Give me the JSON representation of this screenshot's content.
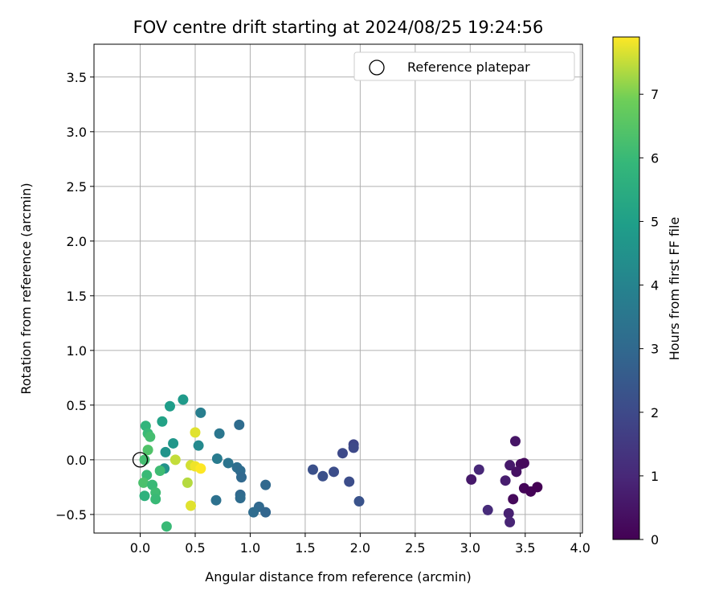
{
  "chart_data": {
    "type": "scatter",
    "title": "FOV centre drift starting at 2024/08/25 19:24:56",
    "xlabel": "Angular distance from reference (arcmin)",
    "ylabel": "Rotation from reference (arcmin)",
    "xlim": [
      -0.42,
      4.02
    ],
    "ylim": [
      -0.67,
      3.8
    ],
    "xticks": [
      0.0,
      0.5,
      1.0,
      1.5,
      2.0,
      2.5,
      3.0,
      3.5,
      4.0
    ],
    "xtick_labels": [
      "0.0",
      "0.5",
      "1.0",
      "1.5",
      "2.0",
      "2.5",
      "3.0",
      "3.5",
      "4.0"
    ],
    "yticks": [
      -0.5,
      0.0,
      0.5,
      1.0,
      1.5,
      2.0,
      2.5,
      3.0,
      3.5
    ],
    "ytick_labels": [
      "−0.5",
      "0.0",
      "0.5",
      "1.0",
      "1.5",
      "2.0",
      "2.5",
      "3.0",
      "3.5"
    ],
    "grid": true,
    "legend": {
      "position": "top-right",
      "entries": [
        "Reference platepar"
      ]
    },
    "reference_point": {
      "x": 0.0,
      "y": 0.0
    },
    "colorbar": {
      "label": "Hours from first FF file",
      "colormap": "viridis",
      "range": [
        0,
        7.9
      ],
      "ticks": [
        0,
        1,
        2,
        3,
        4,
        5,
        6,
        7
      ],
      "tick_labels": [
        "0",
        "1",
        "2",
        "3",
        "4",
        "5",
        "6",
        "7"
      ]
    },
    "points": [
      {
        "x": 3.41,
        "y": 0.17,
        "c": 0.5
      },
      {
        "x": 3.46,
        "y": -0.04,
        "c": 0.3
      },
      {
        "x": 3.49,
        "y": -0.03,
        "c": 0.2
      },
      {
        "x": 3.36,
        "y": -0.05,
        "c": 0.6
      },
      {
        "x": 3.42,
        "y": -0.11,
        "c": 0.4
      },
      {
        "x": 3.49,
        "y": -0.26,
        "c": 0.1
      },
      {
        "x": 3.55,
        "y": -0.29,
        "c": 0.05
      },
      {
        "x": 3.61,
        "y": -0.25,
        "c": 0.0
      },
      {
        "x": 3.32,
        "y": -0.19,
        "c": 0.7
      },
      {
        "x": 3.39,
        "y": -0.36,
        "c": 0.2
      },
      {
        "x": 3.35,
        "y": -0.49,
        "c": 0.8
      },
      {
        "x": 3.36,
        "y": -0.57,
        "c": 0.9
      },
      {
        "x": 3.08,
        "y": -0.09,
        "c": 1.0
      },
      {
        "x": 3.01,
        "y": -0.18,
        "c": 0.6
      },
      {
        "x": 3.16,
        "y": -0.46,
        "c": 1.1
      },
      {
        "x": 1.94,
        "y": 0.14,
        "c": 1.9
      },
      {
        "x": 1.94,
        "y": 0.11,
        "c": 2.0
      },
      {
        "x": 1.84,
        "y": 0.06,
        "c": 2.0
      },
      {
        "x": 1.57,
        "y": -0.09,
        "c": 2.2
      },
      {
        "x": 1.66,
        "y": -0.15,
        "c": 2.2
      },
      {
        "x": 1.76,
        "y": -0.11,
        "c": 2.1
      },
      {
        "x": 1.9,
        "y": -0.2,
        "c": 2.1
      },
      {
        "x": 1.99,
        "y": -0.38,
        "c": 2.3
      },
      {
        "x": 0.9,
        "y": 0.32,
        "c": 3.1
      },
      {
        "x": 0.72,
        "y": 0.24,
        "c": 3.5
      },
      {
        "x": 0.7,
        "y": 0.01,
        "c": 3.7
      },
      {
        "x": 0.8,
        "y": -0.03,
        "c": 3.4
      },
      {
        "x": 0.88,
        "y": -0.07,
        "c": 3.2
      },
      {
        "x": 0.91,
        "y": -0.1,
        "c": 3.1
      },
      {
        "x": 0.92,
        "y": -0.16,
        "c": 3.0
      },
      {
        "x": 1.14,
        "y": -0.23,
        "c": 3.0
      },
      {
        "x": 0.91,
        "y": -0.32,
        "c": 3.0
      },
      {
        "x": 0.91,
        "y": -0.35,
        "c": 3.1
      },
      {
        "x": 0.69,
        "y": -0.37,
        "c": 3.3
      },
      {
        "x": 1.08,
        "y": -0.43,
        "c": 3.0
      },
      {
        "x": 1.03,
        "y": -0.48,
        "c": 3.1
      },
      {
        "x": 1.14,
        "y": -0.48,
        "c": 2.9
      },
      {
        "x": 0.55,
        "y": 0.43,
        "c": 3.8
      },
      {
        "x": 0.53,
        "y": 0.13,
        "c": 4.2
      },
      {
        "x": 0.39,
        "y": 0.55,
        "c": 4.8
      },
      {
        "x": 0.27,
        "y": 0.49,
        "c": 4.9
      },
      {
        "x": 0.2,
        "y": 0.35,
        "c": 5.1
      },
      {
        "x": 0.3,
        "y": 0.15,
        "c": 4.7
      },
      {
        "x": 0.23,
        "y": 0.07,
        "c": 4.6
      },
      {
        "x": 0.22,
        "y": -0.08,
        "c": 4.5
      },
      {
        "x": 0.05,
        "y": 0.31,
        "c": 5.8
      },
      {
        "x": 0.07,
        "y": 0.24,
        "c": 6.0
      },
      {
        "x": 0.09,
        "y": 0.21,
        "c": 6.2
      },
      {
        "x": 0.07,
        "y": 0.09,
        "c": 6.4
      },
      {
        "x": 0.04,
        "y": 0.0,
        "c": 6.2
      },
      {
        "x": 0.18,
        "y": -0.1,
        "c": 6.1
      },
      {
        "x": 0.06,
        "y": -0.14,
        "c": 6.0
      },
      {
        "x": 0.03,
        "y": -0.21,
        "c": 6.3
      },
      {
        "x": 0.11,
        "y": -0.23,
        "c": 6.0
      },
      {
        "x": 0.14,
        "y": -0.3,
        "c": 6.1
      },
      {
        "x": 0.04,
        "y": -0.33,
        "c": 5.7
      },
      {
        "x": 0.14,
        "y": -0.36,
        "c": 6.0
      },
      {
        "x": 0.24,
        "y": -0.61,
        "c": 6.0
      },
      {
        "x": 0.5,
        "y": 0.25,
        "c": 7.7
      },
      {
        "x": 0.32,
        "y": 0.0,
        "c": 7.5
      },
      {
        "x": 0.46,
        "y": -0.05,
        "c": 7.6
      },
      {
        "x": 0.5,
        "y": -0.06,
        "c": 7.8
      },
      {
        "x": 0.55,
        "y": -0.08,
        "c": 7.9
      },
      {
        "x": 0.43,
        "y": -0.21,
        "c": 7.4
      },
      {
        "x": 0.46,
        "y": -0.42,
        "c": 7.7
      }
    ]
  }
}
